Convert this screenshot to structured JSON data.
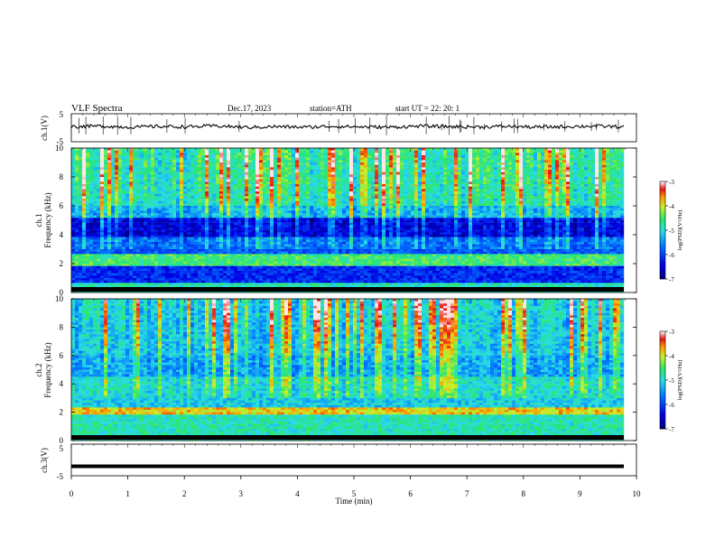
{
  "header": {
    "title": "VLF  Spectra",
    "date": "Dec.17, 2023",
    "station": "station=ATH",
    "start": "start  UT  =    22: 20: 1"
  },
  "chart_data": [
    {
      "type": "line",
      "panel": "ch1-waveform",
      "ylabel": "ch.1(V)",
      "ylim": [
        -5,
        5
      ],
      "yticks": [
        "5",
        "-5"
      ],
      "series": [
        {
          "values": [
            0.4,
            0.6,
            0.2,
            0.5,
            0.3,
            0.7,
            0.1,
            0.4,
            0.2,
            0.5,
            0.3,
            0.2,
            0.6,
            0.4,
            0.3,
            0.5,
            0.2,
            0.4,
            0.6,
            0.3
          ]
        }
      ]
    },
    {
      "type": "heatmap",
      "panel": "ch1-spectrogram",
      "ylabel_line1": "ch.1",
      "ylabel_line2": "Frequency  (kHz)",
      "ylim": [
        0,
        10
      ],
      "yticks": [
        "0",
        "2",
        "4",
        "6",
        "8",
        "10"
      ],
      "colorbar": {
        "label": "log(PSD)(V²/Hz)",
        "range": [
          -7,
          -3
        ],
        "ticks": [
          "-3",
          "-4",
          "-5",
          "-6",
          "-7"
        ]
      }
    },
    {
      "type": "heatmap",
      "panel": "ch2-spectrogram",
      "ylabel_line1": "ch.2",
      "ylabel_line2": "Frequency  (kHz)",
      "ylim": [
        0,
        10
      ],
      "yticks": [
        "0",
        "2",
        "4",
        "6",
        "8",
        "10"
      ],
      "colorbar": {
        "label": "log(PSD)(V²/Hz)",
        "range": [
          -7,
          -3
        ],
        "ticks": [
          "-3",
          "-4",
          "-5",
          "-6",
          "-7"
        ]
      }
    },
    {
      "type": "line",
      "panel": "ch3-waveform",
      "ylabel": "ch.3(V)",
      "ylim": [
        -5,
        5
      ],
      "yticks": [
        "5",
        "-5"
      ],
      "series": [
        {
          "values": [
            -2,
            -2,
            -2,
            -2,
            -2,
            -2,
            -2,
            -2,
            -2,
            -2
          ]
        }
      ]
    }
  ],
  "xaxis": {
    "label": "Time  (min)",
    "range": [
      0,
      10
    ],
    "ticks": [
      "0",
      "1",
      "2",
      "3",
      "4",
      "5",
      "6",
      "7",
      "8",
      "9",
      "10"
    ]
  },
  "colors": {
    "trace": "#000000",
    "spectro_low": "#00007a",
    "spectro_mid": "#2ab7f0",
    "spectro_high": "#1ce07a",
    "spectro_peak": "#ff2a00"
  }
}
